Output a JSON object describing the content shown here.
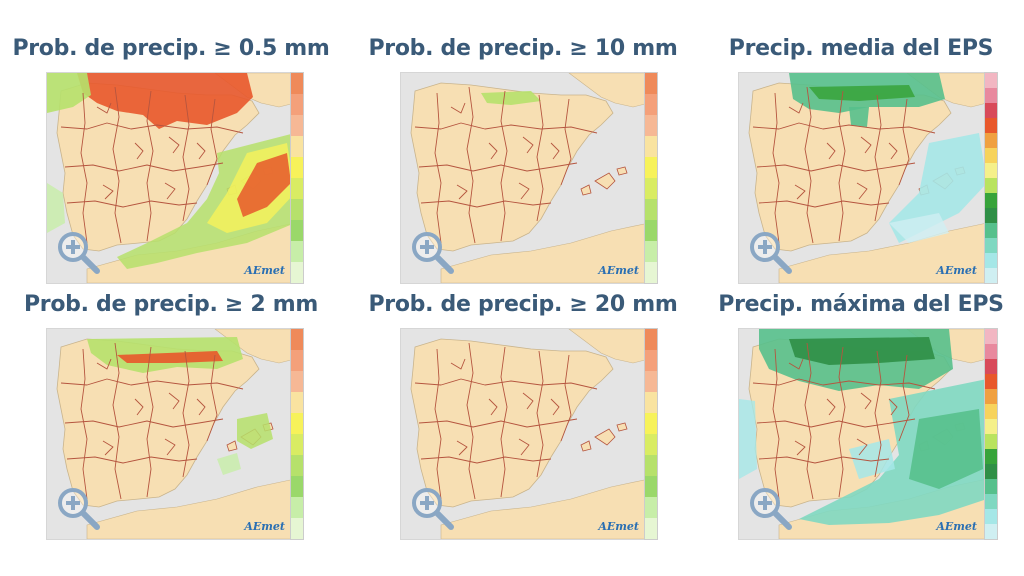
{
  "panels": [
    {
      "id": "p1",
      "title": "Prob. de precip.  ≥ 0.5 mm",
      "scale": "prob",
      "overlay": "heavy"
    },
    {
      "id": "p2",
      "title": "Prob. de precip.  ≥ 10 mm",
      "scale": "prob",
      "overlay": "light"
    },
    {
      "id": "p3",
      "title": "Precip. media del EPS",
      "scale": "amount",
      "overlay": "mean"
    },
    {
      "id": "p4",
      "title": "Prob. de precip.  ≥ 2 mm",
      "scale": "prob",
      "overlay": "medium"
    },
    {
      "id": "p5",
      "title": "Prob. de precip.  ≥ 20 mm",
      "scale": "prob",
      "overlay": "none"
    },
    {
      "id": "p6",
      "title": "Precip. máxima del EPS",
      "scale": "amount",
      "overlay": "max"
    }
  ],
  "logo_text": "AEmet",
  "colors": {
    "title": "#3a5a78",
    "land": "#f7dfb3",
    "sea": "#e4e4e4",
    "border": "#b5553f",
    "prob_scale": [
      "#ef8a5a",
      "#f4a07a",
      "#f6b895",
      "#f9e3a0",
      "#f7f25a",
      "#d9ec63",
      "#b6e16b",
      "#9ad86a",
      "#c7eea8",
      "#e6f6d3"
    ],
    "amount_scale": [
      "#f2b6c2",
      "#e8899e",
      "#d84a5a",
      "#e8582b",
      "#f0a040",
      "#f7d35c",
      "#f5f08a",
      "#b9e35f",
      "#37a33a",
      "#2f8f46",
      "#56c08c",
      "#7fd8c1",
      "#a5e7e7",
      "#cfeff2"
    ]
  }
}
